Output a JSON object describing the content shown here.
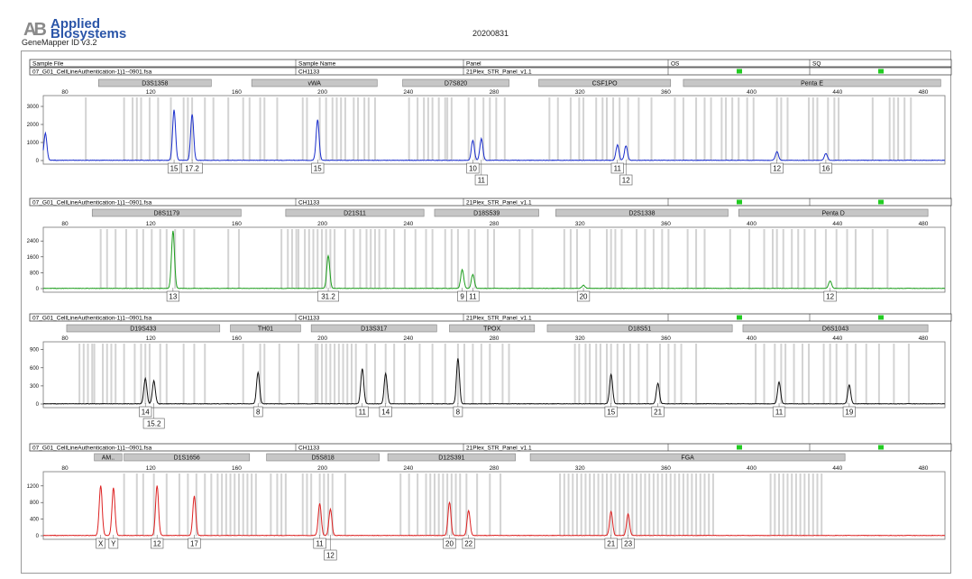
{
  "header": {
    "logo_mark": "AB",
    "logo_line1": "Applied",
    "logo_line2": "Biosystems",
    "software": "GeneMapper ID v3.2",
    "date": "20200831"
  },
  "columns": {
    "sample_file": "Sample File",
    "sample_name": "Sample Name",
    "panel": "Panel",
    "os": "OS",
    "sq": "SQ"
  },
  "status_color": "#22cc22",
  "chart_data": [
    {
      "type": "line",
      "color": "#1a2ecc",
      "sample_file": "07_G01_CellLineAuthentication-1)1--0901.fsa",
      "sample_name": "CH1133",
      "panel": "21Plex_STR_Panel_v1.1",
      "xlim": [
        73,
        497
      ],
      "x_ticks": [
        "80",
        "120",
        "160",
        "200",
        "240",
        "280",
        "320",
        "360",
        "400",
        "440",
        "480"
      ],
      "ylim": [
        0,
        3500
      ],
      "y_ticks": [
        "3000",
        "2000",
        "1000",
        "0"
      ],
      "markers": [
        {
          "name": "D3S1358",
          "start": 99,
          "end": 152
        },
        {
          "name": "vWA",
          "start": 171,
          "end": 230
        },
        {
          "name": "D7S820",
          "start": 242,
          "end": 292
        },
        {
          "name": "CSF1PO",
          "start": 306,
          "end": 368
        },
        {
          "name": "Penta E",
          "start": 374,
          "end": 495
        }
      ],
      "ladder_bins": [
        93,
        111,
        115,
        117,
        119,
        123,
        127,
        133,
        139,
        141,
        143,
        149,
        153,
        160,
        167,
        170,
        175,
        177,
        183,
        195,
        197,
        203,
        206,
        209,
        211,
        213,
        215,
        219,
        221,
        224,
        226,
        229,
        245,
        249,
        252,
        254,
        256,
        259,
        262,
        263,
        265,
        273,
        276,
        280,
        283,
        286,
        290,
        311,
        315,
        321,
        325,
        327,
        333,
        336,
        338,
        341,
        344,
        348,
        353,
        359,
        370,
        374,
        380,
        384,
        387,
        392,
        394,
        397,
        400,
        404,
        407,
        418,
        420,
        423,
        433,
        435,
        437,
        442,
        445,
        447,
        463,
        471,
        473,
        475,
        478,
        481
      ],
      "peaks": [
        {
          "x": 74,
          "y": 1500
        },
        {
          "x": 134.5,
          "y": 2800
        },
        {
          "x": 143,
          "y": 2550
        },
        {
          "x": 202,
          "y": 2250
        },
        {
          "x": 275,
          "y": 1100
        },
        {
          "x": 279,
          "y": 1200
        },
        {
          "x": 343,
          "y": 850
        },
        {
          "x": 347,
          "y": 800
        },
        {
          "x": 418,
          "y": 480
        },
        {
          "x": 441,
          "y": 380
        }
      ],
      "alleles": [
        {
          "x": 134.5,
          "label": "15",
          "row": 0
        },
        {
          "x": 143,
          "label": "17.2",
          "row": 0
        },
        {
          "x": 202,
          "label": "15",
          "row": 0
        },
        {
          "x": 275,
          "label": "10",
          "row": 0
        },
        {
          "x": 279,
          "label": "11",
          "row": 1
        },
        {
          "x": 343,
          "label": "11",
          "row": 0
        },
        {
          "x": 347,
          "label": "12",
          "row": 1
        },
        {
          "x": 418,
          "label": "12",
          "row": 0
        },
        {
          "x": 441,
          "label": "16",
          "row": 0
        }
      ]
    },
    {
      "type": "line",
      "color": "#1e9e1e",
      "sample_file": "07_G01_CellLineAuthentication-1)1--0901.fsa",
      "sample_name": "CH1133",
      "panel": "21Plex_STR_Panel_v1.1",
      "xlim": [
        73,
        497
      ],
      "x_ticks": [
        "80",
        "120",
        "160",
        "200",
        "240",
        "280",
        "320",
        "360",
        "400",
        "440",
        "480"
      ],
      "ylim": [
        0,
        3000
      ],
      "y_ticks": [
        "2400",
        "1600",
        "800",
        "0"
      ],
      "markers": [
        {
          "name": "D8S1179",
          "start": 96,
          "end": 166
        },
        {
          "name": "D21S11",
          "start": 187,
          "end": 252
        },
        {
          "name": "D18S539",
          "start": 257,
          "end": 306
        },
        {
          "name": "D2S1338",
          "start": 314,
          "end": 395
        },
        {
          "name": "Penta D",
          "start": 400,
          "end": 489
        }
      ],
      "ladder_bins": [
        100,
        103,
        107,
        112,
        117,
        120,
        124,
        128,
        131,
        135,
        139,
        144,
        160,
        165,
        185,
        188,
        190,
        192,
        193,
        196,
        198,
        200,
        202,
        204,
        206,
        208,
        210,
        215,
        219,
        222,
        225,
        227,
        229,
        231,
        234,
        238,
        243,
        248,
        253,
        256,
        262,
        265,
        268,
        273,
        276,
        282,
        285,
        297,
        303,
        318,
        321,
        324,
        330,
        338,
        340,
        342,
        345,
        352,
        356,
        360,
        364,
        367,
        376,
        380,
        384,
        396,
        405,
        412,
        416,
        418,
        421,
        425,
        428,
        431,
        436,
        441,
        446,
        451,
        455,
        463,
        470
      ],
      "peaks": [
        {
          "x": 134,
          "y": 2900
        },
        {
          "x": 207,
          "y": 1650
        },
        {
          "x": 270,
          "y": 950
        },
        {
          "x": 275,
          "y": 700
        },
        {
          "x": 327,
          "y": 160
        },
        {
          "x": 443,
          "y": 380
        }
      ],
      "alleles": [
        {
          "x": 134,
          "label": "13",
          "row": 0
        },
        {
          "x": 207,
          "label": "31.2",
          "row": 0
        },
        {
          "x": 270,
          "label": "9",
          "row": 0
        },
        {
          "x": 275,
          "label": "11",
          "row": 0
        },
        {
          "x": 327,
          "label": "20",
          "row": 0
        },
        {
          "x": 443,
          "label": "12",
          "row": 0
        }
      ]
    },
    {
      "type": "line",
      "color": "#111111",
      "sample_file": "07_G01_CellLineAuthentication-1)1--0901.fsa",
      "sample_name": "CH1133",
      "panel": "21Plex_STR_Panel_v1.1",
      "xlim": [
        73,
        497
      ],
      "x_ticks": [
        "80",
        "120",
        "160",
        "200",
        "240",
        "280",
        "320",
        "360",
        "400",
        "440",
        "480"
      ],
      "ylim": [
        0,
        1000
      ],
      "y_ticks": [
        "900",
        "600",
        "300",
        "0"
      ],
      "markers": [
        {
          "name": "D19S433",
          "start": 84,
          "end": 156
        },
        {
          "name": "TH01",
          "start": 161,
          "end": 194
        },
        {
          "name": "D13S317",
          "start": 199,
          "end": 258
        },
        {
          "name": "TPOX",
          "start": 264,
          "end": 304
        },
        {
          "name": "D18S51",
          "start": 310,
          "end": 397
        },
        {
          "name": "D6S1043",
          "start": 402,
          "end": 489
        }
      ],
      "ladder_bins": [
        90,
        92,
        94,
        96,
        97,
        101,
        103,
        105,
        107,
        111,
        116,
        119,
        121,
        123,
        128,
        131,
        139,
        144,
        149,
        167,
        175,
        177,
        184,
        193,
        201,
        202,
        204,
        206,
        208,
        210,
        212,
        214,
        216,
        218,
        220,
        225,
        229,
        234,
        238,
        243,
        250,
        256,
        262,
        268,
        271,
        275,
        279,
        283,
        289,
        292,
        323,
        325,
        328,
        330,
        333,
        335,
        338,
        340,
        343,
        346,
        349,
        353,
        357,
        363,
        367,
        370,
        373,
        380,
        408,
        412,
        417,
        420,
        422,
        426,
        430,
        433,
        440,
        443,
        446,
        451,
        455,
        460,
        466,
        473,
        480
      ],
      "peaks": [
        {
          "x": 121,
          "y": 420
        },
        {
          "x": 125,
          "y": 380
        },
        {
          "x": 174,
          "y": 520
        },
        {
          "x": 223,
          "y": 580
        },
        {
          "x": 234,
          "y": 500
        },
        {
          "x": 268,
          "y": 750
        },
        {
          "x": 340,
          "y": 490
        },
        {
          "x": 362,
          "y": 340
        },
        {
          "x": 419,
          "y": 360
        },
        {
          "x": 452,
          "y": 310
        }
      ],
      "alleles": [
        {
          "x": 121,
          "label": "14",
          "row": 0
        },
        {
          "x": 125,
          "label": "15.2",
          "row": 1
        },
        {
          "x": 174,
          "label": "8",
          "row": 0
        },
        {
          "x": 223,
          "label": "11",
          "row": 0
        },
        {
          "x": 234,
          "label": "14",
          "row": 0
        },
        {
          "x": 268,
          "label": "8",
          "row": 0
        },
        {
          "x": 340,
          "label": "15",
          "row": 0
        },
        {
          "x": 362,
          "label": "21",
          "row": 0
        },
        {
          "x": 419,
          "label": "11",
          "row": 0
        },
        {
          "x": 452,
          "label": "19",
          "row": 0
        }
      ]
    },
    {
      "type": "line",
      "color": "#dd2222",
      "sample_file": "07_G01_CellLineAuthentication-1)1--0901.fsa",
      "sample_name": "CH1133",
      "panel": "21Plex_STR_Panel_v1.1",
      "xlim": [
        73,
        497
      ],
      "x_ticks": [
        "80",
        "120",
        "160",
        "200",
        "240",
        "280",
        "320",
        "360",
        "400",
        "440",
        "480"
      ],
      "ylim": [
        0,
        1500
      ],
      "y_ticks": [
        "1200",
        "800",
        "400",
        "0"
      ],
      "markers": [
        {
          "name": "AM..",
          "start": 97,
          "end": 110
        },
        {
          "name": "D1S1656",
          "start": 111,
          "end": 170
        },
        {
          "name": "D5S818",
          "start": 178,
          "end": 231
        },
        {
          "name": "D12S391",
          "start": 235,
          "end": 295
        },
        {
          "name": "FGA",
          "start": 302,
          "end": 450
        }
      ],
      "ladder_bins": [
        111,
        117,
        120,
        125,
        131,
        137,
        141,
        145,
        149,
        152,
        155,
        157,
        159,
        161,
        163,
        165,
        167,
        169,
        171,
        173,
        180,
        183,
        185,
        187,
        195,
        197,
        199,
        203,
        205,
        207,
        209,
        215,
        241,
        245,
        249,
        253,
        255,
        257,
        259,
        261,
        263,
        265,
        267,
        269,
        272,
        277,
        283,
        288,
        316,
        318,
        320,
        322,
        324,
        326,
        328,
        330,
        332,
        334,
        336,
        338,
        340,
        342,
        344,
        346,
        348,
        350,
        352,
        354,
        356,
        358,
        360,
        362,
        364,
        366,
        368,
        370,
        372,
        374,
        376,
        378,
        380,
        382,
        384,
        386,
        388,
        415,
        417,
        419,
        421,
        423,
        425,
        427,
        429,
        431,
        433,
        435,
        437,
        439
      ],
      "peaks": [
        {
          "x": 100,
          "y": 1200
        },
        {
          "x": 106,
          "y": 1150
        },
        {
          "x": 126.5,
          "y": 1200
        },
        {
          "x": 144,
          "y": 950
        },
        {
          "x": 203,
          "y": 770
        },
        {
          "x": 208,
          "y": 630
        },
        {
          "x": 264,
          "y": 800
        },
        {
          "x": 273,
          "y": 600
        },
        {
          "x": 340,
          "y": 580
        },
        {
          "x": 348,
          "y": 520
        }
      ],
      "alleles": [
        {
          "x": 100,
          "label": "X",
          "row": 0
        },
        {
          "x": 106,
          "label": "Y",
          "row": 0
        },
        {
          "x": 126.5,
          "label": "12",
          "row": 0
        },
        {
          "x": 144,
          "label": "17",
          "row": 0
        },
        {
          "x": 203,
          "label": "11",
          "row": 0
        },
        {
          "x": 208,
          "label": "12",
          "row": 1
        },
        {
          "x": 264,
          "label": "20",
          "row": 0
        },
        {
          "x": 273,
          "label": "22",
          "row": 0
        },
        {
          "x": 340,
          "label": "21",
          "row": 0
        },
        {
          "x": 348,
          "label": "23",
          "row": 0
        }
      ]
    }
  ]
}
